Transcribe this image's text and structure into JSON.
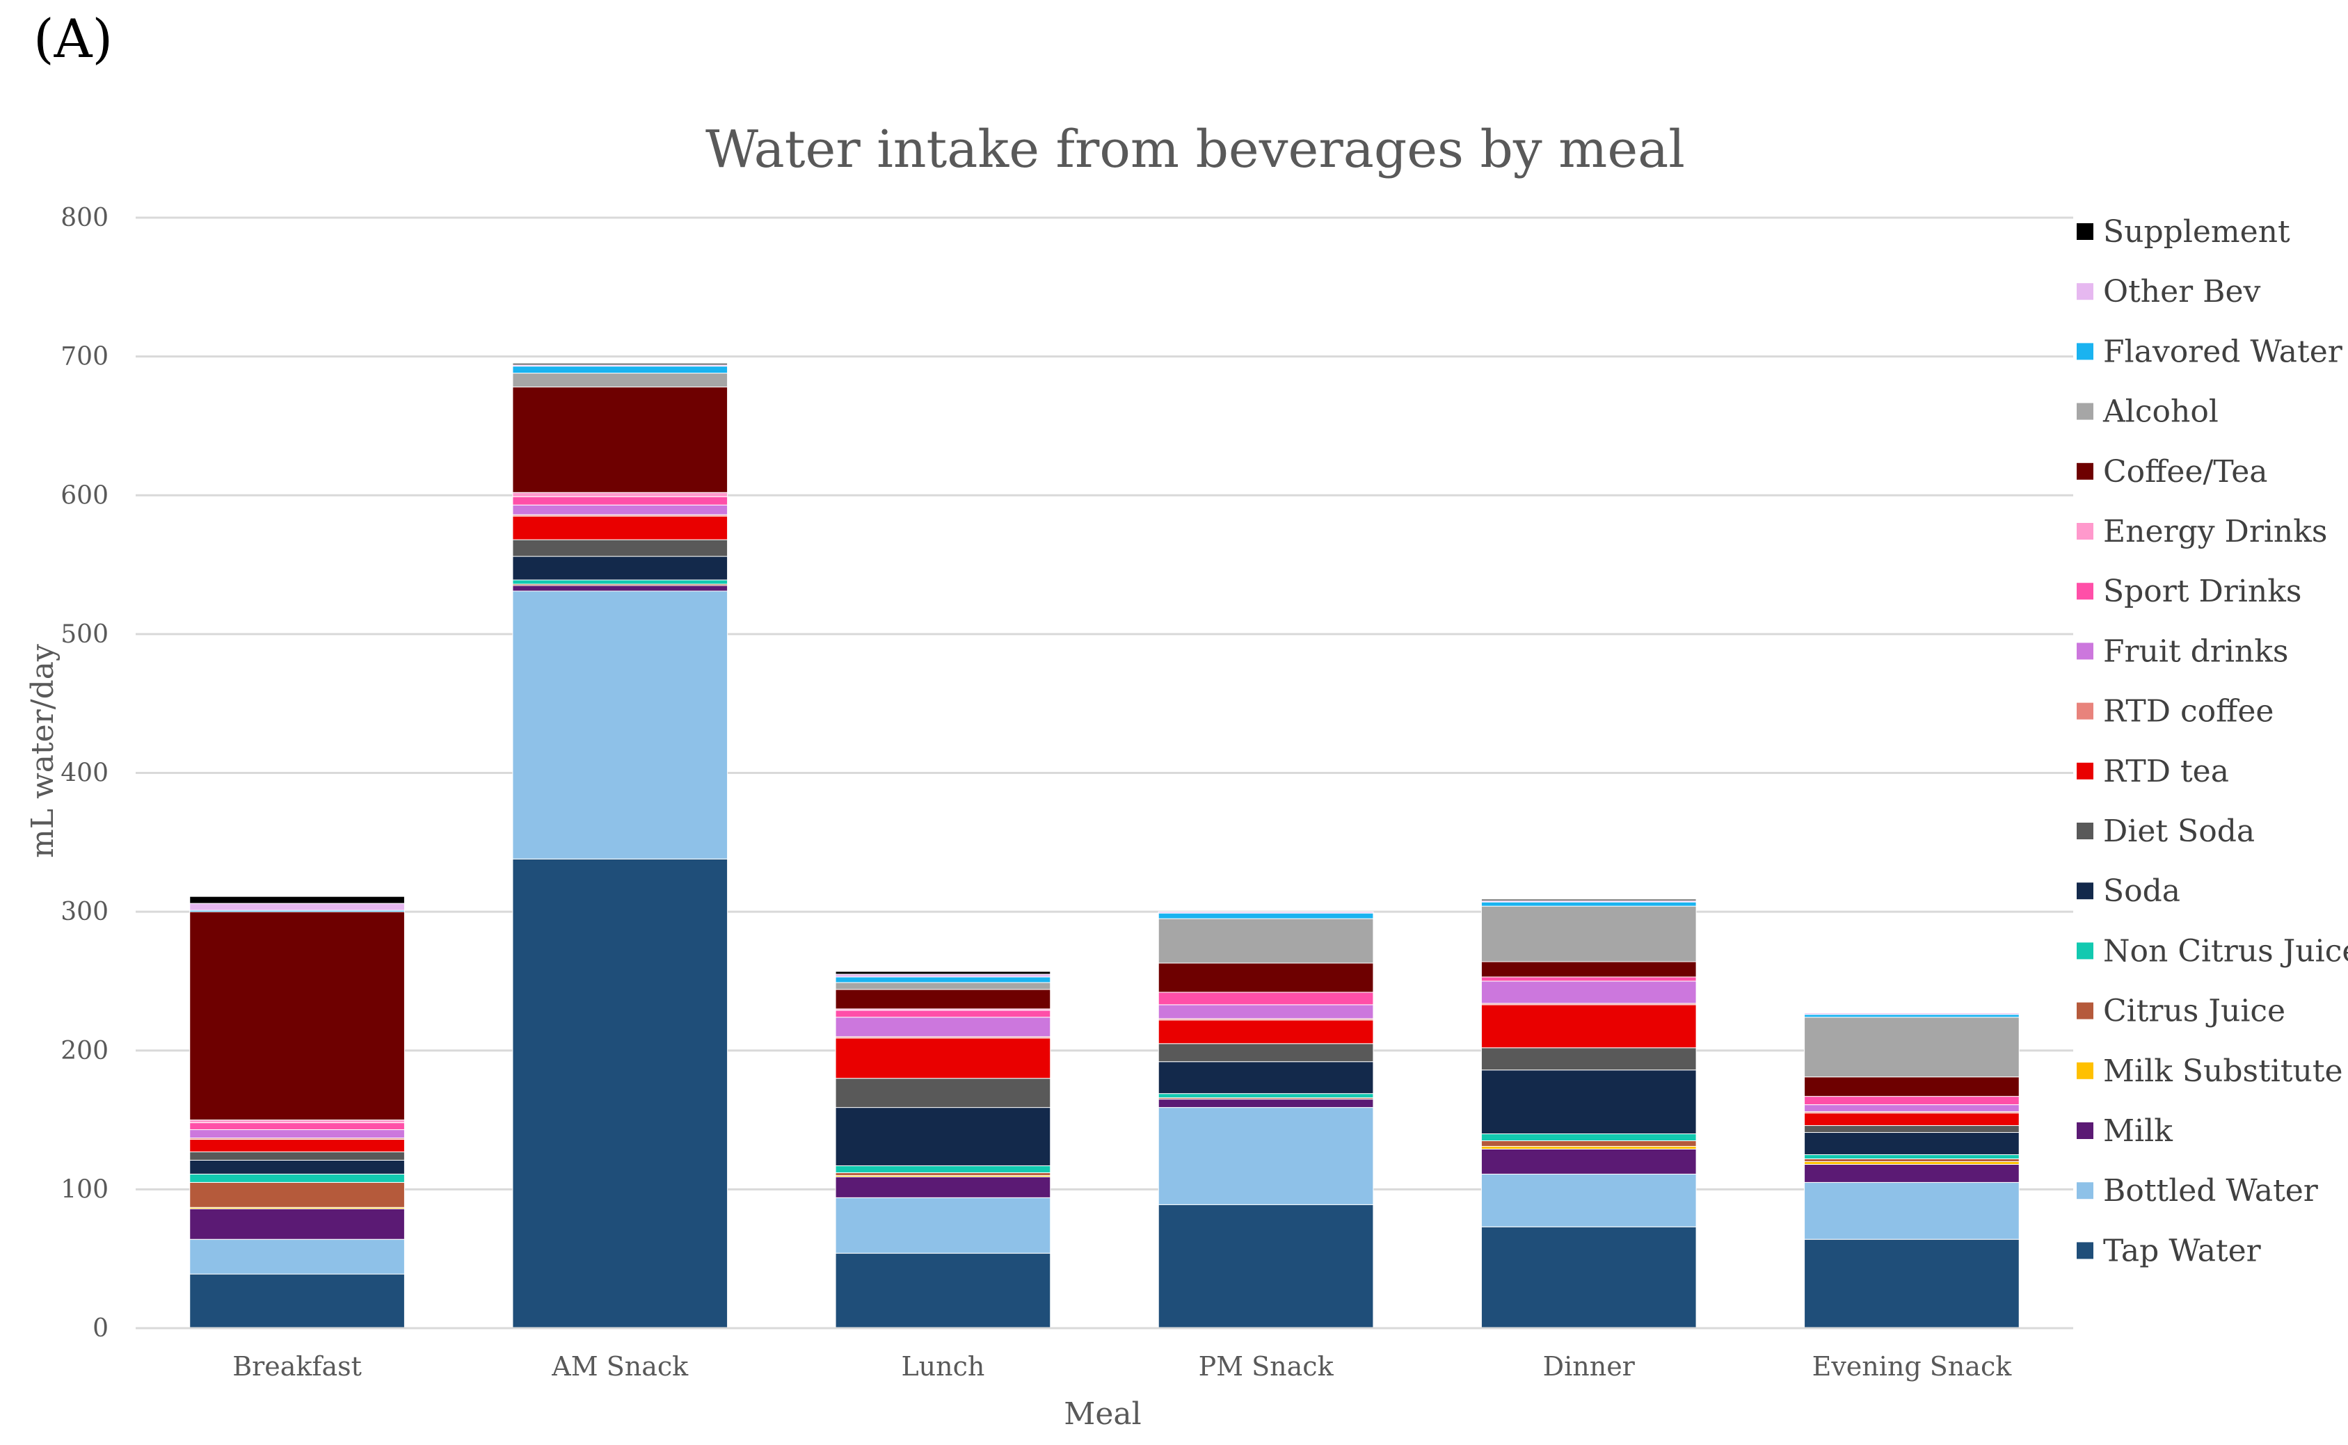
{
  "panel_label": "(A)",
  "chart_data": {
    "type": "bar",
    "stacked": true,
    "title": "Water intake from beverages by meal",
    "xlabel": "Meal",
    "ylabel": "mL water/day",
    "ylim": [
      0,
      800
    ],
    "yticks": [
      0,
      100,
      200,
      300,
      400,
      500,
      600,
      700,
      800
    ],
    "grid": true,
    "legend_position": "right",
    "categories": [
      "Breakfast",
      "AM Snack",
      "Lunch",
      "PM Snack",
      "Dinner",
      "Evening Snack"
    ],
    "series": [
      {
        "name": "Tap Water",
        "color": "#1F4E79",
        "values": [
          39,
          338,
          54,
          89,
          73,
          64
        ]
      },
      {
        "name": "Bottled Water",
        "color": "#8EC1E8",
        "values": [
          25,
          193,
          40,
          70,
          38,
          41
        ]
      },
      {
        "name": "Milk",
        "color": "#5B1A74",
        "values": [
          22,
          4,
          15,
          6,
          18,
          13
        ]
      },
      {
        "name": "Milk Substitute",
        "color": "#FFC000",
        "values": [
          1,
          0,
          1,
          0,
          2,
          2
        ]
      },
      {
        "name": "Citrus Juice",
        "color": "#B55A3B",
        "values": [
          18,
          1,
          2,
          1,
          4,
          2
        ]
      },
      {
        "name": "Non Citrus Juice",
        "color": "#12C9B0",
        "values": [
          6,
          3,
          5,
          3,
          5,
          3
        ]
      },
      {
        "name": "Soda",
        "color": "#13294B",
        "values": [
          10,
          17,
          42,
          23,
          46,
          16
        ]
      },
      {
        "name": "Diet Soda",
        "color": "#595959",
        "values": [
          6,
          12,
          21,
          13,
          16,
          5
        ]
      },
      {
        "name": "RTD tea",
        "color": "#E90000",
        "values": [
          9,
          17,
          29,
          17,
          31,
          9
        ]
      },
      {
        "name": "RTD coffee",
        "color": "#E8837C",
        "values": [
          1,
          1,
          1,
          1,
          1,
          1
        ]
      },
      {
        "name": "Fruit drinks",
        "color": "#CC77DD",
        "values": [
          6,
          7,
          14,
          10,
          16,
          5
        ]
      },
      {
        "name": "Sport Drinks",
        "color": "#FF4FA8",
        "values": [
          5,
          6,
          5,
          9,
          3,
          6
        ]
      },
      {
        "name": "Energy Drinks",
        "color": "#FF99CC",
        "values": [
          2,
          3,
          1,
          0,
          0,
          0
        ]
      },
      {
        "name": "Coffee/Tea",
        "color": "#6E0000",
        "values": [
          150,
          76,
          14,
          21,
          11,
          14
        ]
      },
      {
        "name": "Alcohol",
        "color": "#A6A6A6",
        "values": [
          0,
          10,
          5,
          32,
          40,
          43
        ]
      },
      {
        "name": "Flavored Water",
        "color": "#1AB3F0",
        "values": [
          1,
          5,
          4,
          4,
          3,
          2
        ]
      },
      {
        "name": "Other Bev",
        "color": "#E6B8F0",
        "values": [
          5,
          1,
          2,
          1,
          1,
          1
        ]
      },
      {
        "name": "Supplement",
        "color": "#000000",
        "values": [
          5,
          1,
          2,
          0,
          1,
          0
        ]
      }
    ]
  }
}
